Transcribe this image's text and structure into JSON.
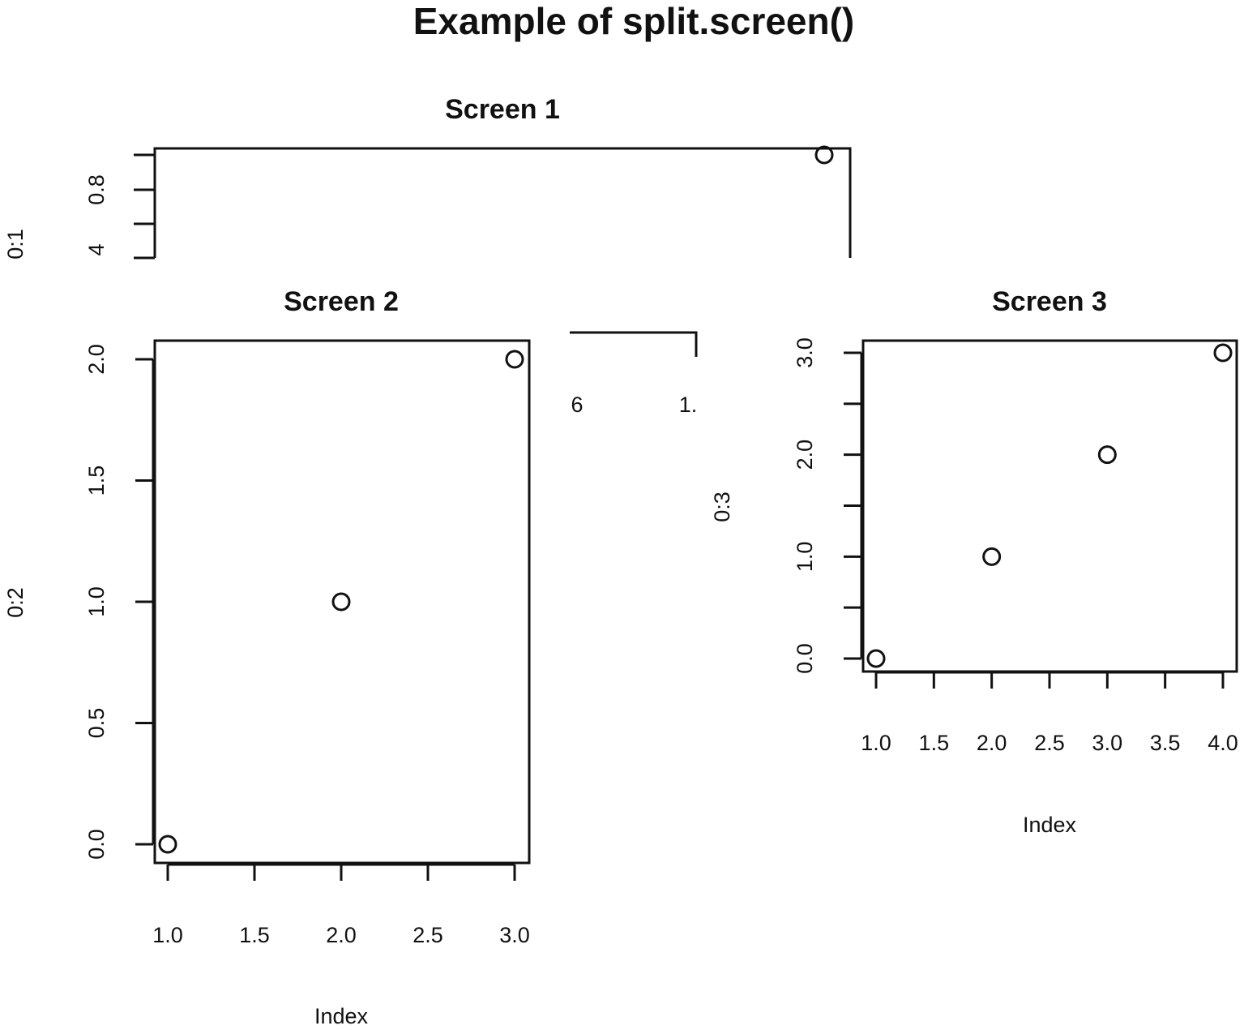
{
  "figure": {
    "title": "Example of split.screen()"
  },
  "chart_data": [
    {
      "type": "scatter",
      "title": "Screen 1",
      "xlabel": "",
      "ylabel": "0:1",
      "y_tick_labels": [
        "0.8",
        "4"
      ],
      "points": [
        {
          "x": 1.0,
          "y": 1.0
        }
      ],
      "grid": false
    },
    {
      "type": "scatter",
      "title": "Screen 2",
      "xlabel": "Index",
      "ylabel": "0:2",
      "xlim": [
        1.0,
        3.0
      ],
      "ylim": [
        0.0,
        2.0
      ],
      "x_tick_labels": [
        "1.0",
        "1.5",
        "2.0",
        "2.5",
        "3.0"
      ],
      "y_tick_labels": [
        "0.0",
        "0.5",
        "1.0",
        "1.5",
        "2.0"
      ],
      "points": [
        {
          "x": 1.0,
          "y": 0.0
        },
        {
          "x": 2.0,
          "y": 1.0
        },
        {
          "x": 3.0,
          "y": 2.0
        }
      ],
      "grid": false
    },
    {
      "type": "scatter",
      "title": "",
      "xlabel": "",
      "ylabel": "0:3",
      "x_tick_labels": [
        "6",
        "1."
      ],
      "points": [],
      "grid": false
    },
    {
      "type": "scatter",
      "title": "Screen 3",
      "xlabel": "Index",
      "ylabel": "",
      "xlim": [
        1.0,
        4.0
      ],
      "ylim": [
        0.0,
        3.0
      ],
      "x_tick_labels": [
        "1.0",
        "1.5",
        "2.0",
        "2.5",
        "3.0",
        "3.5",
        "4.0"
      ],
      "y_tick_labels": [
        "0.0",
        "1.0",
        "2.0",
        "3.0"
      ],
      "points": [
        {
          "x": 1.0,
          "y": 0.0
        },
        {
          "x": 2.0,
          "y": 1.0
        },
        {
          "x": 3.0,
          "y": 2.0
        },
        {
          "x": 4.0,
          "y": 3.0
        }
      ],
      "grid": false
    }
  ]
}
